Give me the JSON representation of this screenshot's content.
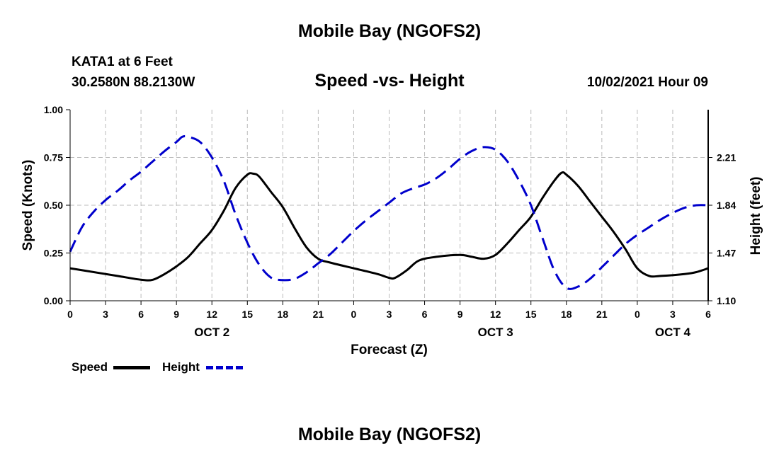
{
  "header": {
    "title": "Mobile Bay (NGOFS2)",
    "station": "KATA1 at 6 Feet",
    "coords": "30.2580N  88.2130W",
    "subtitle": "Speed -vs- Height",
    "datetime": "10/02/2021 Hour 09"
  },
  "footer": {
    "title": "Mobile Bay (NGOFS2)"
  },
  "legend": {
    "speed": "Speed",
    "height": "Height"
  },
  "colors": {
    "speed": "#000000",
    "height": "#0000cc",
    "grid": "#bbbbbb"
  },
  "chart_data": {
    "type": "line",
    "xlabel": "Forecast (Z)",
    "ylabel": "Speed (Knots)",
    "y2label": "Height (feet)",
    "x_range_hours": [
      0,
      54
    ],
    "x_ticks": [
      {
        "hour": 0,
        "label": "0"
      },
      {
        "hour": 3,
        "label": "3"
      },
      {
        "hour": 6,
        "label": "6"
      },
      {
        "hour": 9,
        "label": "9"
      },
      {
        "hour": 12,
        "label": "12"
      },
      {
        "hour": 15,
        "label": "15"
      },
      {
        "hour": 18,
        "label": "18"
      },
      {
        "hour": 21,
        "label": "21"
      },
      {
        "hour": 24,
        "label": "0"
      },
      {
        "hour": 27,
        "label": "3"
      },
      {
        "hour": 30,
        "label": "6"
      },
      {
        "hour": 33,
        "label": "9"
      },
      {
        "hour": 36,
        "label": "12"
      },
      {
        "hour": 39,
        "label": "15"
      },
      {
        "hour": 42,
        "label": "18"
      },
      {
        "hour": 45,
        "label": "21"
      },
      {
        "hour": 48,
        "label": "0"
      },
      {
        "hour": 51,
        "label": "3"
      },
      {
        "hour": 54,
        "label": "6"
      }
    ],
    "date_labels": [
      {
        "hour": 12,
        "label": "OCT 2"
      },
      {
        "hour": 36,
        "label": "OCT 3"
      },
      {
        "hour": 51,
        "label": "OCT 4"
      }
    ],
    "ylim": [
      0,
      1
    ],
    "y_ticks": [
      "0.00",
      "0.25",
      "0.50",
      "0.75",
      "1.00"
    ],
    "y2lim": [
      1.1,
      2.58
    ],
    "y2_ticks": [
      "1.10",
      "1.47",
      "1.84",
      "2.21"
    ],
    "grid": true,
    "legend_position": "bottom-left",
    "series": [
      {
        "name": "Speed",
        "axis": "left",
        "style": "solid",
        "points": [
          [
            0,
            0.17
          ],
          [
            2,
            0.15
          ],
          [
            4,
            0.13
          ],
          [
            6,
            0.11
          ],
          [
            7,
            0.11
          ],
          [
            8,
            0.14
          ],
          [
            9,
            0.18
          ],
          [
            10,
            0.23
          ],
          [
            11,
            0.3
          ],
          [
            12,
            0.37
          ],
          [
            13,
            0.47
          ],
          [
            14,
            0.59
          ],
          [
            15,
            0.66
          ],
          [
            15.5,
            0.665
          ],
          [
            16,
            0.65
          ],
          [
            17,
            0.57
          ],
          [
            18,
            0.49
          ],
          [
            19,
            0.38
          ],
          [
            20,
            0.28
          ],
          [
            21,
            0.22
          ],
          [
            22,
            0.2
          ],
          [
            24,
            0.17
          ],
          [
            26,
            0.14
          ],
          [
            27,
            0.12
          ],
          [
            27.5,
            0.12
          ],
          [
            28.5,
            0.16
          ],
          [
            29.5,
            0.21
          ],
          [
            31,
            0.23
          ],
          [
            33,
            0.24
          ],
          [
            34,
            0.23
          ],
          [
            35,
            0.22
          ],
          [
            36,
            0.24
          ],
          [
            37,
            0.3
          ],
          [
            38,
            0.37
          ],
          [
            39,
            0.44
          ],
          [
            40,
            0.54
          ],
          [
            41,
            0.63
          ],
          [
            41.6,
            0.67
          ],
          [
            42,
            0.66
          ],
          [
            43,
            0.6
          ],
          [
            44,
            0.52
          ],
          [
            45,
            0.44
          ],
          [
            46,
            0.36
          ],
          [
            47,
            0.27
          ],
          [
            48,
            0.17
          ],
          [
            49,
            0.13
          ],
          [
            50,
            0.13
          ],
          [
            52,
            0.14
          ],
          [
            53,
            0.15
          ],
          [
            54,
            0.17
          ]
        ]
      },
      {
        "name": "Height",
        "axis": "right",
        "style": "dashed",
        "points": [
          [
            0,
            1.48
          ],
          [
            1,
            1.67
          ],
          [
            2,
            1.79
          ],
          [
            3,
            1.88
          ],
          [
            4,
            1.95
          ],
          [
            5,
            2.03
          ],
          [
            6,
            2.1
          ],
          [
            7,
            2.18
          ],
          [
            8,
            2.26
          ],
          [
            9,
            2.33
          ],
          [
            9.5,
            2.37
          ],
          [
            10,
            2.37
          ],
          [
            11,
            2.33
          ],
          [
            12,
            2.21
          ],
          [
            13,
            2.03
          ],
          [
            14,
            1.77
          ],
          [
            15,
            1.55
          ],
          [
            16,
            1.38
          ],
          [
            17,
            1.28
          ],
          [
            18,
            1.26
          ],
          [
            19,
            1.27
          ],
          [
            20,
            1.32
          ],
          [
            21,
            1.39
          ],
          [
            22,
            1.46
          ],
          [
            23,
            1.55
          ],
          [
            24,
            1.64
          ],
          [
            25,
            1.72
          ],
          [
            26,
            1.79
          ],
          [
            27,
            1.86
          ],
          [
            28,
            1.93
          ],
          [
            29,
            1.97
          ],
          [
            30,
            2.0
          ],
          [
            31,
            2.05
          ],
          [
            32,
            2.12
          ],
          [
            33,
            2.2
          ],
          [
            34,
            2.26
          ],
          [
            35,
            2.29
          ],
          [
            36,
            2.27
          ],
          [
            37,
            2.18
          ],
          [
            38,
            2.03
          ],
          [
            39,
            1.84
          ],
          [
            40,
            1.58
          ],
          [
            41,
            1.33
          ],
          [
            42,
            1.2
          ],
          [
            43,
            1.21
          ],
          [
            44,
            1.27
          ],
          [
            45,
            1.36
          ],
          [
            46,
            1.45
          ],
          [
            47,
            1.54
          ],
          [
            48,
            1.61
          ],
          [
            49,
            1.67
          ],
          [
            50,
            1.73
          ],
          [
            51,
            1.78
          ],
          [
            52,
            1.82
          ],
          [
            53,
            1.84
          ],
          [
            54,
            1.84
          ]
        ]
      }
    ]
  }
}
